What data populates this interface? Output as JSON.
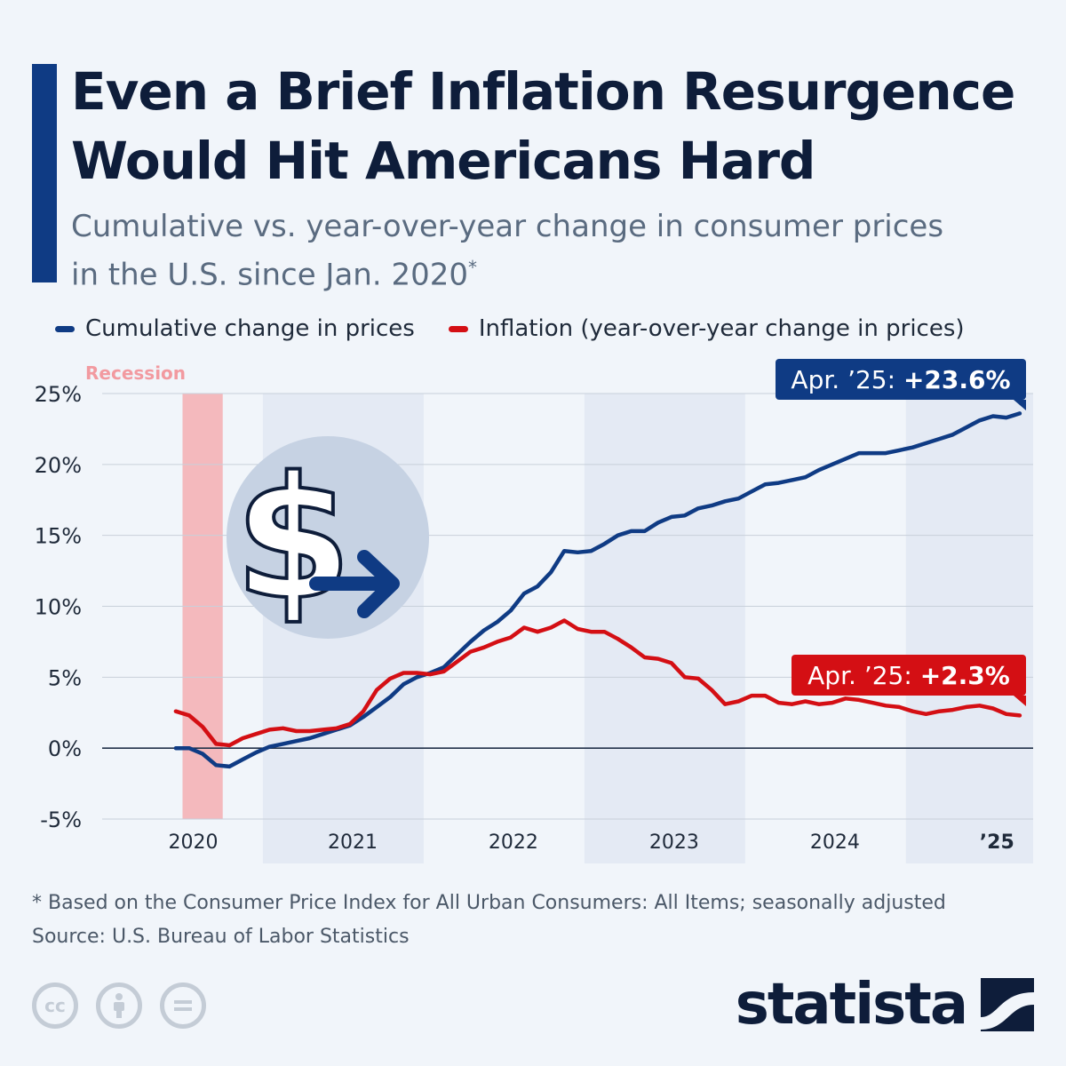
{
  "header": {
    "title_line1": "Even a Brief Inflation Resurgence",
    "title_line2": "Would Hit Americans Hard",
    "subtitle_line1": "Cumulative vs. year-over-year change in consumer prices",
    "subtitle_line2": "in the U.S. since Jan. 2020",
    "subtitle_mark": "*"
  },
  "footer": {
    "note": "* Based on the Consumer Price Index for All Urban Consumers: All Items; seasonally adjusted",
    "source": "Source: U.S. Bureau of Labor Statistics",
    "brand": "statista",
    "icons": [
      "creative-commons-icon",
      "attribution-icon",
      "no-derivatives-icon"
    ]
  },
  "colors": {
    "cumulative": "#0f3b84",
    "inflation": "#d40f14",
    "recession": "#f4b9bd",
    "band": "#e4eaf4",
    "grid": "#c8d0da",
    "title": "#0e1d3a"
  },
  "chart_data": {
    "type": "line",
    "ylim": [
      -5,
      25
    ],
    "yticks": [
      -5,
      0,
      5,
      10,
      15,
      20,
      25
    ],
    "ytick_labels": [
      "-5%",
      "0%",
      "5%",
      "10%",
      "15%",
      "20%",
      "25%"
    ],
    "year_labels": [
      "2020",
      "2021",
      "2022",
      "2023",
      "2024",
      "’25"
    ],
    "recession_label": "Recession",
    "recession_period": [
      "2020-02",
      "2020-04"
    ],
    "legend_position": "top-left",
    "grid": true,
    "x": [
      "2020-01",
      "2020-02",
      "2020-03",
      "2020-04",
      "2020-05",
      "2020-06",
      "2020-07",
      "2020-08",
      "2020-09",
      "2020-10",
      "2020-11",
      "2020-12",
      "2021-01",
      "2021-02",
      "2021-03",
      "2021-04",
      "2021-05",
      "2021-06",
      "2021-07",
      "2021-08",
      "2021-09",
      "2021-10",
      "2021-11",
      "2021-12",
      "2022-01",
      "2022-02",
      "2022-03",
      "2022-04",
      "2022-05",
      "2022-06",
      "2022-07",
      "2022-08",
      "2022-09",
      "2022-10",
      "2022-11",
      "2022-12",
      "2023-01",
      "2023-02",
      "2023-03",
      "2023-04",
      "2023-05",
      "2023-06",
      "2023-07",
      "2023-08",
      "2023-09",
      "2023-10",
      "2023-11",
      "2023-12",
      "2024-01",
      "2024-02",
      "2024-03",
      "2024-04",
      "2024-05",
      "2024-06",
      "2024-07",
      "2024-08",
      "2024-09",
      "2024-10",
      "2024-11",
      "2024-12",
      "2025-01",
      "2025-02",
      "2025-03",
      "2025-04"
    ],
    "series": [
      {
        "name": "Cumulative change in prices",
        "values": [
          0.0,
          0.0,
          -0.4,
          -1.2,
          -1.3,
          -0.8,
          -0.3,
          0.1,
          0.3,
          0.5,
          0.7,
          1.0,
          1.3,
          1.6,
          2.2,
          2.9,
          3.6,
          4.5,
          5.0,
          5.3,
          5.7,
          6.6,
          7.5,
          8.3,
          8.9,
          9.7,
          10.9,
          11.4,
          12.4,
          13.9,
          13.8,
          13.9,
          14.4,
          15.0,
          15.3,
          15.3,
          15.9,
          16.3,
          16.4,
          16.9,
          17.1,
          17.4,
          17.6,
          18.1,
          18.6,
          18.7,
          18.9,
          19.1,
          19.6,
          20.0,
          20.4,
          20.8,
          20.8,
          20.8,
          21.0,
          21.2,
          21.5,
          21.8,
          22.1,
          22.6,
          23.1,
          23.4,
          23.3,
          23.6
        ],
        "callout": "Apr. ’25: ",
        "callout_value": "+23.6%"
      },
      {
        "name": "Inflation (year-over-year change in prices)",
        "values": [
          2.6,
          2.3,
          1.5,
          0.3,
          0.2,
          0.7,
          1.0,
          1.3,
          1.4,
          1.2,
          1.2,
          1.3,
          1.4,
          1.7,
          2.6,
          4.1,
          4.9,
          5.3,
          5.3,
          5.2,
          5.4,
          6.1,
          6.8,
          7.1,
          7.5,
          7.8,
          8.5,
          8.2,
          8.5,
          9.0,
          8.4,
          8.2,
          8.2,
          7.7,
          7.1,
          6.4,
          6.3,
          6.0,
          5.0,
          4.9,
          4.1,
          3.1,
          3.3,
          3.7,
          3.7,
          3.2,
          3.1,
          3.3,
          3.1,
          3.2,
          3.5,
          3.4,
          3.2,
          3.0,
          2.9,
          2.6,
          2.4,
          2.6,
          2.7,
          2.9,
          3.0,
          2.8,
          2.4,
          2.3
        ],
        "callout": "Apr. ’25: ",
        "callout_value": "+2.3%"
      }
    ]
  }
}
